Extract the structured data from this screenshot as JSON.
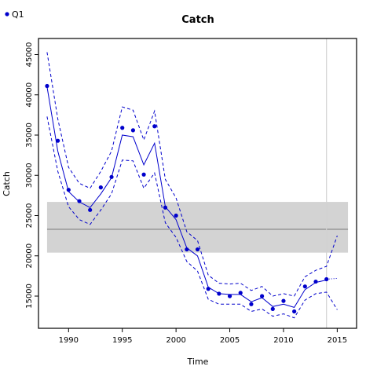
{
  "chart_data": {
    "type": "line",
    "title": "Catch",
    "xlabel": "Time",
    "ylabel": "Catch",
    "xlim": [
      1987.2,
      2016.8
    ],
    "ylim": [
      11000,
      47000
    ],
    "xticks": [
      1990,
      1995,
      2000,
      2005,
      2010,
      2015
    ],
    "yticks": [
      15000,
      20000,
      25000,
      30000,
      35000,
      40000,
      45000
    ],
    "grid": false,
    "legend": {
      "placement": "top-left",
      "entries": [
        "Q1"
      ]
    },
    "colors": {
      "series": "#0000cc",
      "band_fill": "#d3d3d3",
      "band_line": "#808080",
      "vline": "#d3d3d3"
    },
    "reference_band": {
      "x": [
        1988,
        2016
      ],
      "lower": 20400,
      "upper": 26700,
      "mid": 23300
    },
    "vertical_line_x": 2014,
    "series": [
      {
        "name": "Q1",
        "style": "points",
        "x": [
          1988,
          1989,
          1990,
          1991,
          1992,
          1993,
          1994,
          1995,
          1996,
          1997,
          1998,
          1999,
          2000,
          2001,
          2002,
          2003,
          2004,
          2005,
          2006,
          2007,
          2008,
          2009,
          2010,
          2011,
          2012,
          2013,
          2014
        ],
        "y": [
          41100,
          34300,
          28200,
          26800,
          25700,
          28500,
          29800,
          35900,
          35600,
          30100,
          36100,
          26000,
          25000,
          20800,
          20800,
          15900,
          15300,
          15000,
          15400,
          14000,
          15000,
          13400,
          14400,
          13100,
          16200,
          16800,
          17100
        ]
      },
      {
        "style": "solid",
        "x": [
          1988,
          1989,
          1990,
          1991,
          1992,
          1993,
          1994,
          1995,
          1996,
          1997,
          1998,
          1999,
          2000,
          2001,
          2002,
          2003,
          2004,
          2005,
          2006,
          2007,
          2008,
          2009,
          2010,
          2011,
          2012,
          2013,
          2014
        ],
        "y": [
          41000,
          33000,
          28000,
          26700,
          26000,
          27700,
          29700,
          35000,
          34800,
          31300,
          34000,
          26100,
          24500,
          21000,
          20000,
          16100,
          15300,
          15200,
          15200,
          14300,
          14800,
          13700,
          14000,
          13600,
          15800,
          16700,
          17000
        ]
      },
      {
        "style": "dashed-upper",
        "x": [
          1988,
          1989,
          1990,
          1991,
          1992,
          1993,
          1994,
          1995,
          1996,
          1997,
          1998,
          1999,
          2000,
          2001,
          2002,
          2003,
          2004,
          2005,
          2006,
          2007,
          2008,
          2009,
          2010,
          2011,
          2012,
          2013,
          2014,
          2015
        ],
        "y": [
          45300,
          37000,
          31000,
          29000,
          28400,
          30500,
          33000,
          38500,
          38100,
          34400,
          38000,
          29500,
          27200,
          23000,
          21900,
          17600,
          16600,
          16500,
          16600,
          15700,
          16200,
          15000,
          15300,
          15000,
          17400,
          18200,
          18700,
          22500
        ]
      },
      {
        "style": "dashed-lower",
        "x": [
          1988,
          1989,
          1990,
          1991,
          1992,
          1993,
          1994,
          1995,
          1996,
          1997,
          1998,
          1999,
          2000,
          2001,
          2002,
          2003,
          2004,
          2005,
          2006,
          2007,
          2008,
          2009,
          2010,
          2011,
          2012,
          2013,
          2014,
          2015
        ],
        "y": [
          37300,
          30500,
          26100,
          24500,
          23900,
          25700,
          27700,
          31900,
          31800,
          28400,
          30300,
          24100,
          22300,
          19300,
          18100,
          14600,
          14000,
          14000,
          14000,
          13100,
          13400,
          12500,
          12800,
          12300,
          14500,
          15300,
          15500,
          13300
        ]
      },
      {
        "style": "dotted",
        "x": [
          2014,
          2015
        ],
        "y": [
          17100,
          17200
        ]
      }
    ]
  }
}
